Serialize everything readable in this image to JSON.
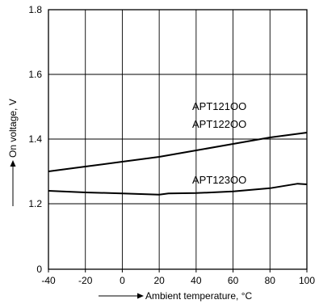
{
  "chart_data": {
    "type": "line",
    "xlabel": "Ambient temperature, °C",
    "ylabel": "On voltage, V",
    "xlim": [
      -40,
      100
    ],
    "ylim": [
      0,
      1.8
    ],
    "x_ticks": [
      "-40",
      "-20",
      "0",
      "20",
      "40",
      "60",
      "80",
      "100"
    ],
    "y_ticks": [
      {
        "value": 0,
        "label": "0"
      },
      {
        "value": 1.2,
        "label": "1.2"
      },
      {
        "value": 1.4,
        "label": "1.4"
      },
      {
        "value": 1.6,
        "label": "1.6"
      },
      {
        "value": 1.8,
        "label": "1.8"
      }
    ],
    "y_axis_break": true,
    "grid": true,
    "series": [
      {
        "name": "APT121OO / APT122OO",
        "labels": [
          "APT121OO",
          "APT122OO"
        ],
        "x": [
          -40,
          -20,
          0,
          20,
          40,
          60,
          80,
          100
        ],
        "values": [
          1.3,
          1.315,
          1.33,
          1.345,
          1.365,
          1.385,
          1.405,
          1.42
        ]
      },
      {
        "name": "APT123OO",
        "labels": [
          "APT123OO"
        ],
        "x": [
          -40,
          -20,
          0,
          20,
          25,
          40,
          60,
          80,
          95,
          100
        ],
        "values": [
          1.24,
          1.235,
          1.232,
          1.228,
          1.232,
          1.233,
          1.238,
          1.248,
          1.262,
          1.26
        ]
      }
    ],
    "colors": {
      "line": "#000000",
      "grid": "#000000"
    }
  }
}
